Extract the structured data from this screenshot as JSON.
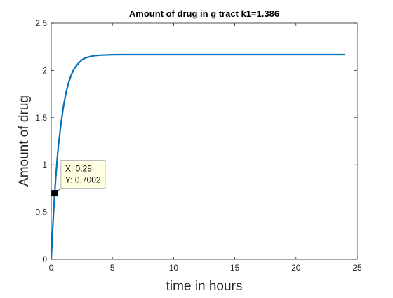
{
  "chart_data": {
    "type": "line",
    "title": "Amount of drug in g tract k1=1.386",
    "xlabel": "time in hours",
    "ylabel": "Amount of drug",
    "xlim": [
      0,
      25
    ],
    "ylim": [
      0,
      2.5
    ],
    "xticks": [
      0,
      5,
      10,
      15,
      20,
      25
    ],
    "yticks": [
      0,
      0.5,
      1,
      1.5,
      2,
      2.5
    ],
    "xtick_labels": [
      "0",
      "5",
      "10",
      "15",
      "20",
      "25"
    ],
    "ytick_labels": [
      "0",
      "0.5",
      "1",
      "1.5",
      "2",
      "2.5"
    ],
    "grid": false,
    "series": [
      {
        "color": "#0072BD",
        "x": [
          0,
          0.1,
          0.2,
          0.28,
          0.4,
          0.5,
          0.6,
          0.8,
          1.0,
          1.2,
          1.4,
          1.6,
          1.8,
          2.0,
          2.25,
          2.5,
          2.75,
          3.0,
          3.5,
          4.0,
          4.5,
          5.0,
          6.0,
          8.0,
          10.0,
          12.0,
          16.0,
          20.0,
          24.0
        ],
        "y": [
          0,
          0.28,
          0.52,
          0.7,
          0.92,
          1.08,
          1.22,
          1.44,
          1.62,
          1.76,
          1.86,
          1.94,
          2.0,
          2.04,
          2.08,
          2.11,
          2.13,
          2.14,
          2.155,
          2.16,
          2.163,
          2.165,
          2.166,
          2.166,
          2.166,
          2.166,
          2.166,
          2.166,
          2.166
        ]
      }
    ],
    "datatip": {
      "x": 0.28,
      "y": 0.7002,
      "x_text": "X: 0.28",
      "y_text": "Y: 0.7002"
    }
  }
}
